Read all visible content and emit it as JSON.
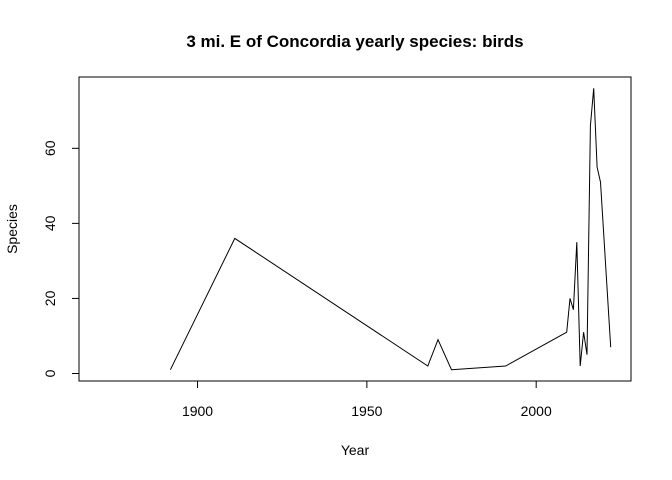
{
  "chart_data": {
    "type": "line",
    "title": "3 mi. E of Concordia yearly species: birds",
    "xlabel": "Year",
    "ylabel": "Species",
    "xlim": [
      1865,
      2028
    ],
    "ylim": [
      -2,
      79
    ],
    "x_ticks": [
      1900,
      1950,
      2000
    ],
    "y_ticks": [
      0,
      20,
      40,
      60
    ],
    "grid": false,
    "series": [
      {
        "x": [
          1892,
          1911,
          1968,
          1971,
          1975,
          1991,
          2009,
          2010,
          2011,
          2012,
          2013,
          2014,
          2015,
          2016,
          2017,
          2018,
          2019,
          2022
        ],
        "y": [
          1,
          36,
          2,
          9,
          1,
          2,
          11,
          20,
          17,
          35,
          2,
          11,
          5,
          66,
          76,
          55,
          51,
          7
        ]
      }
    ],
    "color": "#000000"
  }
}
